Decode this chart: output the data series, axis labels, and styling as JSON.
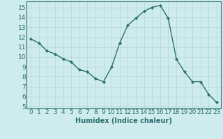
{
  "x": [
    0,
    1,
    2,
    3,
    4,
    5,
    6,
    7,
    8,
    9,
    10,
    11,
    12,
    13,
    14,
    15,
    16,
    17,
    18,
    19,
    20,
    21,
    22,
    23
  ],
  "y": [
    11.8,
    11.4,
    10.6,
    10.3,
    9.8,
    9.5,
    8.7,
    8.5,
    7.8,
    7.5,
    9.0,
    11.4,
    13.2,
    13.9,
    14.6,
    15.0,
    15.2,
    13.9,
    9.8,
    8.5,
    7.5,
    7.5,
    6.2,
    5.4
  ],
  "line_color": "#2d6e6e",
  "marker": "D",
  "marker_size": 2.0,
  "bg_color": "#ceeced",
  "grid_color": "#b8d8da",
  "xlabel": "Humidex (Indice chaleur)",
  "xlim": [
    -0.5,
    23.5
  ],
  "ylim": [
    4.8,
    15.6
  ],
  "yticks": [
    5,
    6,
    7,
    8,
    9,
    10,
    11,
    12,
    13,
    14,
    15
  ],
  "xticks": [
    0,
    1,
    2,
    3,
    4,
    5,
    6,
    7,
    8,
    9,
    10,
    11,
    12,
    13,
    14,
    15,
    16,
    17,
    18,
    19,
    20,
    21,
    22,
    23
  ],
  "font_color": "#2d6e6e",
  "xlabel_fontsize": 7,
  "tick_fontsize": 6.5,
  "line_width": 1.0
}
